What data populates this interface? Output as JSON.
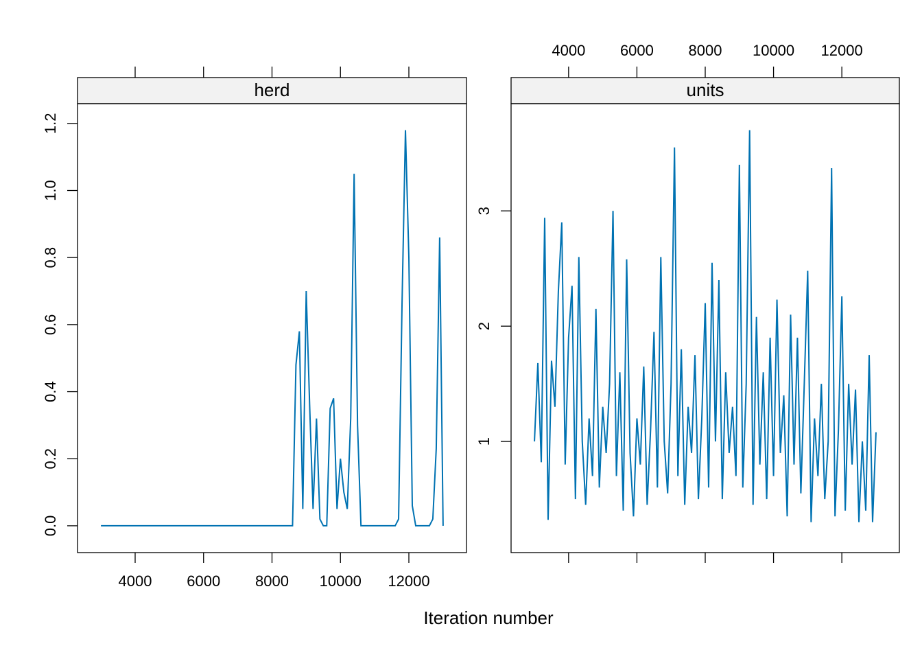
{
  "chart_data": {
    "type": "line",
    "xlabel": "Iteration number",
    "color": "#0072b2",
    "xlim": [
      2316,
      13684
    ],
    "xticks": [
      4000,
      6000,
      8000,
      10000,
      12000
    ],
    "x": [
      3000,
      3100,
      3200,
      3300,
      3400,
      3500,
      3600,
      3700,
      3800,
      3900,
      4000,
      4100,
      4200,
      4300,
      4400,
      4500,
      4600,
      4700,
      4800,
      4900,
      5000,
      5100,
      5200,
      5300,
      5400,
      5500,
      5600,
      5700,
      5800,
      5900,
      6000,
      6100,
      6200,
      6300,
      6400,
      6500,
      6600,
      6700,
      6800,
      6900,
      7000,
      7100,
      7200,
      7300,
      7400,
      7500,
      7600,
      7700,
      7800,
      7900,
      8000,
      8100,
      8200,
      8300,
      8400,
      8500,
      8600,
      8700,
      8800,
      8900,
      9000,
      9100,
      9200,
      9300,
      9400,
      9500,
      9600,
      9700,
      9800,
      9900,
      10000,
      10100,
      10200,
      10300,
      10400,
      10500,
      10600,
      10700,
      10800,
      10900,
      11000,
      11100,
      11200,
      11300,
      11400,
      11500,
      11600,
      11700,
      11800,
      11900,
      12000,
      12100,
      12200,
      12300,
      12400,
      12500,
      12600,
      12700,
      12800,
      12900,
      13000
    ],
    "panels": [
      {
        "title": "herd",
        "ylim": [
          -0.08,
          1.259
        ],
        "yticks": [
          {
            "value": 0,
            "label": "0.0"
          },
          0.2,
          0.4,
          0.6,
          0.8,
          {
            "value": 1,
            "label": "1.0"
          },
          1.2
        ],
        "values": [
          0,
          0,
          0,
          0,
          0,
          0,
          0,
          0,
          0,
          0,
          0,
          0,
          0,
          0,
          0,
          0,
          0,
          0,
          0,
          0,
          0,
          0,
          0,
          0,
          0,
          0,
          0,
          0,
          0,
          0,
          0,
          0,
          0,
          0,
          0,
          0,
          0,
          0,
          0,
          0,
          0,
          0,
          0,
          0,
          0,
          0,
          0,
          0,
          0,
          0,
          0,
          0,
          0,
          0,
          0,
          0,
          0,
          0.48,
          0.58,
          0.05,
          0.7,
          0.36,
          0.05,
          0.32,
          0.02,
          0,
          0,
          0.35,
          0.38,
          0.05,
          0.2,
          0.1,
          0.05,
          0.32,
          1.05,
          0.3,
          0,
          0,
          0,
          0,
          0,
          0,
          0,
          0,
          0,
          0,
          0,
          0.02,
          0.66,
          1.18,
          0.8,
          0.06,
          0,
          0,
          0,
          0,
          0,
          0.02,
          0.23,
          0.86,
          0
        ]
      },
      {
        "title": "units",
        "ylim": [
          0.036,
          3.93
        ],
        "yticks": [
          1,
          2,
          3
        ],
        "values": [
          1.0,
          1.68,
          0.82,
          2.94,
          0.32,
          1.7,
          1.3,
          2.3,
          2.9,
          0.8,
          1.9,
          2.35,
          0.5,
          2.6,
          1.0,
          0.45,
          1.2,
          0.7,
          2.15,
          0.6,
          1.3,
          0.9,
          1.5,
          3.0,
          0.7,
          1.6,
          0.4,
          2.58,
          0.9,
          0.35,
          1.2,
          0.8,
          1.65,
          0.45,
          1.1,
          1.95,
          0.6,
          2.6,
          1.0,
          0.55,
          1.5,
          3.55,
          0.7,
          1.8,
          0.45,
          1.3,
          0.9,
          1.75,
          0.5,
          1.2,
          2.2,
          0.6,
          2.55,
          1.0,
          2.4,
          0.5,
          1.6,
          0.9,
          1.3,
          0.7,
          3.4,
          0.6,
          1.5,
          3.7,
          0.45,
          2.08,
          0.8,
          1.6,
          0.5,
          1.9,
          0.7,
          2.23,
          0.9,
          1.4,
          0.35,
          2.1,
          0.8,
          1.9,
          0.55,
          1.5,
          2.48,
          0.3,
          1.2,
          0.7,
          1.5,
          0.5,
          1.0,
          3.37,
          0.35,
          1.1,
          2.26,
          0.4,
          1.5,
          0.8,
          1.45,
          0.3,
          1.0,
          0.4,
          1.75,
          0.3,
          1.08
        ]
      }
    ]
  }
}
